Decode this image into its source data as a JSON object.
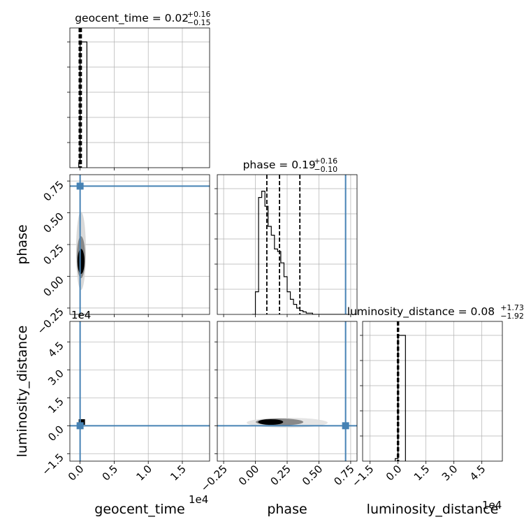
{
  "chart_data": [
    {
      "panel": "geocent_time",
      "type": "histogram",
      "title": {
        "name": "geocent_time",
        "median": "0.02",
        "plus": "+0.16",
        "minus": "−0.15"
      },
      "xlim": [
        -0.15,
        1.9
      ],
      "x_exponent": "1e4",
      "bins": [
        {
          "x0": -0.02,
          "x1": 0.0,
          "count": 0.04
        },
        {
          "x0": 0.0,
          "x1": 0.1,
          "count": 1.0
        }
      ],
      "quantile_lines": [
        -0.013,
        0.002,
        0.018
      ],
      "x_ticks": [
        "0.0",
        "0.5",
        "1.0",
        "1.5"
      ],
      "grid": true
    },
    {
      "panel": "phase_vs_geocent_time",
      "type": "scatter",
      "x_label": "geocent_time",
      "y_label": "phase",
      "xlim": [
        -0.15,
        1.9
      ],
      "ylim": [
        -0.3,
        0.8
      ],
      "y_ticks": [
        "−0.25",
        "0.00",
        "0.25",
        "0.50",
        "0.75"
      ],
      "truth": {
        "x": 0.0,
        "y": 0.71
      },
      "density_center": {
        "x": 0.003,
        "y": 0.15
      },
      "grid": true
    },
    {
      "panel": "phase",
      "type": "histogram",
      "title": {
        "name": "phase",
        "median": "0.19",
        "plus": "+0.16",
        "minus": "−0.10"
      },
      "xlim": [
        -0.3,
        0.8
      ],
      "bin_edges": [
        -0.025,
        0.0,
        0.025,
        0.05,
        0.075,
        0.1,
        0.125,
        0.15,
        0.175,
        0.2,
        0.225,
        0.25,
        0.275,
        0.3,
        0.325,
        0.35,
        0.375,
        0.4,
        0.425,
        0.45,
        0.475,
        0.5,
        0.525,
        0.55,
        0.575,
        0.6,
        0.625,
        0.65,
        0.675,
        0.7,
        0.725
      ],
      "counts": [
        0.0,
        0.18,
        0.93,
        0.98,
        0.86,
        0.7,
        0.63,
        0.52,
        0.5,
        0.41,
        0.3,
        0.18,
        0.12,
        0.08,
        0.05,
        0.03,
        0.02,
        0.01,
        0.01,
        0.0,
        0.0,
        0.0,
        0.0,
        0.0,
        0.0,
        0.0,
        0.0,
        0.0,
        0.0,
        0.0
      ],
      "quantile_lines": [
        0.09,
        0.19,
        0.35
      ],
      "truth": 0.71,
      "grid": true
    },
    {
      "panel": "luminosity_distance_vs_geocent_time",
      "type": "scatter",
      "x_label": "geocent_time",
      "y_label": "luminosity_distance",
      "xlim": [
        -0.15,
        1.9
      ],
      "ylim": [
        -1.9,
        5.6
      ],
      "x_exponent": "1e4",
      "y_exponent": "1e4",
      "x_ticks": [
        "0.0",
        "0.5",
        "1.0",
        "1.5"
      ],
      "y_ticks": [
        "−1.5",
        "0.0",
        "1.5",
        "3.0",
        "4.5"
      ],
      "truth": {
        "x": 0.0,
        "y": 0.0
      },
      "density_center": {
        "x": 0.02,
        "y": 0.2
      },
      "grid": true
    },
    {
      "panel": "luminosity_distance_vs_phase",
      "type": "scatter",
      "x_label": "phase",
      "y_label": "luminosity_distance",
      "xlim": [
        -0.3,
        0.8
      ],
      "ylim": [
        -1.9,
        5.6
      ],
      "x_ticks": [
        "−0.25",
        "0.00",
        "0.25",
        "0.50",
        "0.75"
      ],
      "truth": {
        "x": 0.71,
        "y": 0.0
      },
      "density_center": {
        "x": 0.15,
        "y": 0.2
      },
      "grid": true
    },
    {
      "panel": "luminosity_distance",
      "type": "histogram",
      "title": {
        "name": "luminosity_distance",
        "median": "0.08",
        "plus": "+1.73",
        "minus": "−1.92"
      },
      "xlim": [
        -1.9,
        5.6
      ],
      "x_exponent": "1e4",
      "bins": [
        {
          "x0": -0.15,
          "x1": 0.0,
          "count": 0.02
        },
        {
          "x0": 0.0,
          "x1": 0.4,
          "count": 1.0
        }
      ],
      "quantile_lines": [
        -0.03,
        0.0,
        0.03
      ],
      "x_ticks": [
        "−1.5",
        "0.0",
        "1.5",
        "3.0",
        "4.5"
      ],
      "grid": true
    }
  ]
}
